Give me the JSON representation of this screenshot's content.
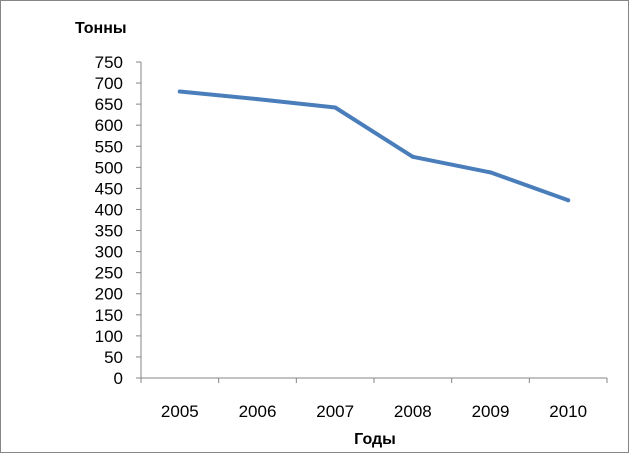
{
  "chart_data": {
    "type": "line",
    "ylabel": "Тонны",
    "xlabel": "Годы",
    "categories": [
      "2005",
      "2006",
      "2007",
      "2008",
      "2009",
      "2010"
    ],
    "series": [
      {
        "values": [
          680,
          662,
          642,
          525,
          488,
          422
        ]
      }
    ],
    "ylim": [
      0,
      750
    ],
    "yticks": [
      0,
      50,
      100,
      150,
      200,
      250,
      300,
      350,
      400,
      450,
      500,
      550,
      600,
      650,
      700,
      750
    ],
    "grid": false,
    "legend": "none",
    "line_color": "#4a7ebb",
    "axis_color": "#868686"
  }
}
